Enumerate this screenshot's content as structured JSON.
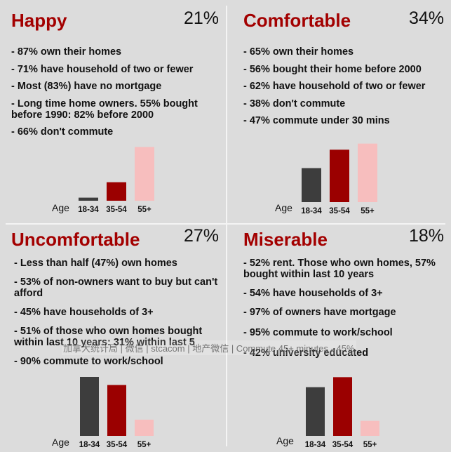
{
  "chart_data": [
    {
      "type": "bar",
      "title": "Happy",
      "share": "21%",
      "bullets": [
        "- 87% own their homes",
        "- 71% have household of two or fewer",
        "- Most (83%) have no mortgage",
        "- Long time home owners. 55% bought before 1990: 82% before 2000",
        "- 66% don't commute"
      ],
      "xlabel": "Age",
      "categories": [
        "18-34",
        "35-54",
        "55+"
      ],
      "values": [
        5,
        30,
        87
      ],
      "colors": [
        "#3d3d3d",
        "#9b0000",
        "#f7bebe"
      ],
      "ylim": [
        0,
        100
      ]
    },
    {
      "type": "bar",
      "title": "Comfortable",
      "share": "34%",
      "bullets": [
        "- 65% own their homes",
        "- 56% bought their home before 2000",
        "- 62% have household of two or fewer",
        "- 38% don't commute",
        "- 47% commute under 30 mins"
      ],
      "xlabel": "Age",
      "categories": [
        "18-34",
        "35-54",
        "55+"
      ],
      "values": [
        50,
        77,
        86
      ],
      "colors": [
        "#3d3d3d",
        "#9b0000",
        "#f7bebe"
      ],
      "ylim": [
        0,
        100
      ]
    },
    {
      "type": "bar",
      "title": "Uncomfortable",
      "share": "27%",
      "bullets": [
        "- Less than half (47%) own homes",
        "- 53% of non-owners want to buy but can't afford",
        "- 45% have households of 3+",
        "- 51% of those who own homes bought within last 10 years: 31% within last 5",
        "- 90% commute to work/school"
      ],
      "xlabel": "Age",
      "categories": [
        "18-34",
        "35-54",
        "55+"
      ],
      "values": [
        80,
        69,
        22
      ],
      "colors": [
        "#3d3d3d",
        "#9b0000",
        "#f7bebe"
      ],
      "ylim": [
        0,
        100
      ]
    },
    {
      "type": "bar",
      "title": "Miserable",
      "share": "18%",
      "bullets": [
        "- 52% rent. Those who own homes, 57% bought within last 10 years",
        "- 54% have households of 3+",
        "- 97% of owners have mortgage",
        "- 95% commute to work/school",
        "- 42% university educated"
      ],
      "xlabel": "Age",
      "categories": [
        "18-34",
        "35-54",
        "55+"
      ],
      "values": [
        68,
        82,
        21
      ],
      "colors": [
        "#3d3d3d",
        "#9b0000",
        "#f7bebe"
      ],
      "ylim": [
        0,
        100
      ]
    }
  ],
  "watermark": "加拿大统计局 | 微信 | stcacom | 地产微信 | Commute 45+ minutes - 45%"
}
